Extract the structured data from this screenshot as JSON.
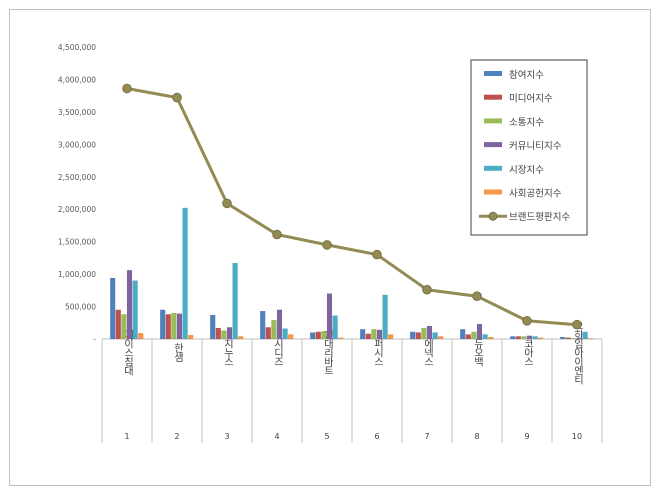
{
  "chart_data": {
    "type": "bar",
    "categories": [
      "에이스침대",
      "한샘",
      "지누스",
      "시디즈",
      "현대리바트",
      "퍼시스",
      "에넥스",
      "듀오백",
      "코아스",
      "오하임아이엔티"
    ],
    "category_numbers": [
      "1",
      "2",
      "3",
      "4",
      "5",
      "6",
      "7",
      "8",
      "9",
      "10"
    ],
    "y_ticks": [
      "-",
      "500,000",
      "1,000,000",
      "1,500,000",
      "2,000,000",
      "2,500,000",
      "3,000,000",
      "3,500,000",
      "4,000,000",
      "4,500,000"
    ],
    "ylim": [
      0,
      4500000
    ],
    "grid": false,
    "legend_position": "top-right",
    "series": [
      {
        "name": "참여지수",
        "type": "bar",
        "color": "#4f81bd",
        "values": [
          940000,
          450000,
          370000,
          430000,
          100000,
          150000,
          110000,
          150000,
          40000,
          30000
        ]
      },
      {
        "name": "미디어지수",
        "type": "bar",
        "color": "#c0504d",
        "values": [
          450000,
          380000,
          170000,
          180000,
          110000,
          80000,
          100000,
          70000,
          40000,
          20000
        ]
      },
      {
        "name": "소통지수",
        "type": "bar",
        "color": "#9bbb59",
        "values": [
          380000,
          400000,
          130000,
          290000,
          120000,
          150000,
          170000,
          110000,
          40000,
          10000
        ]
      },
      {
        "name": "커뮤니티지수",
        "type": "bar",
        "color": "#8064a2",
        "values": [
          1060000,
          390000,
          180000,
          450000,
          700000,
          140000,
          200000,
          230000,
          50000,
          20000
        ]
      },
      {
        "name": "시장지수",
        "type": "bar",
        "color": "#4bacc6",
        "values": [
          900000,
          2020000,
          1170000,
          160000,
          360000,
          680000,
          100000,
          70000,
          40000,
          110000
        ]
      },
      {
        "name": "사회공헌지수",
        "type": "bar",
        "color": "#f79646",
        "values": [
          90000,
          60000,
          40000,
          70000,
          20000,
          70000,
          40000,
          30000,
          20000,
          10000
        ]
      },
      {
        "name": "브랜드평판지수",
        "type": "line",
        "color": "#948a54",
        "values": [
          3860000,
          3720000,
          2090000,
          1610000,
          1450000,
          1300000,
          760000,
          660000,
          280000,
          220000
        ]
      }
    ]
  }
}
